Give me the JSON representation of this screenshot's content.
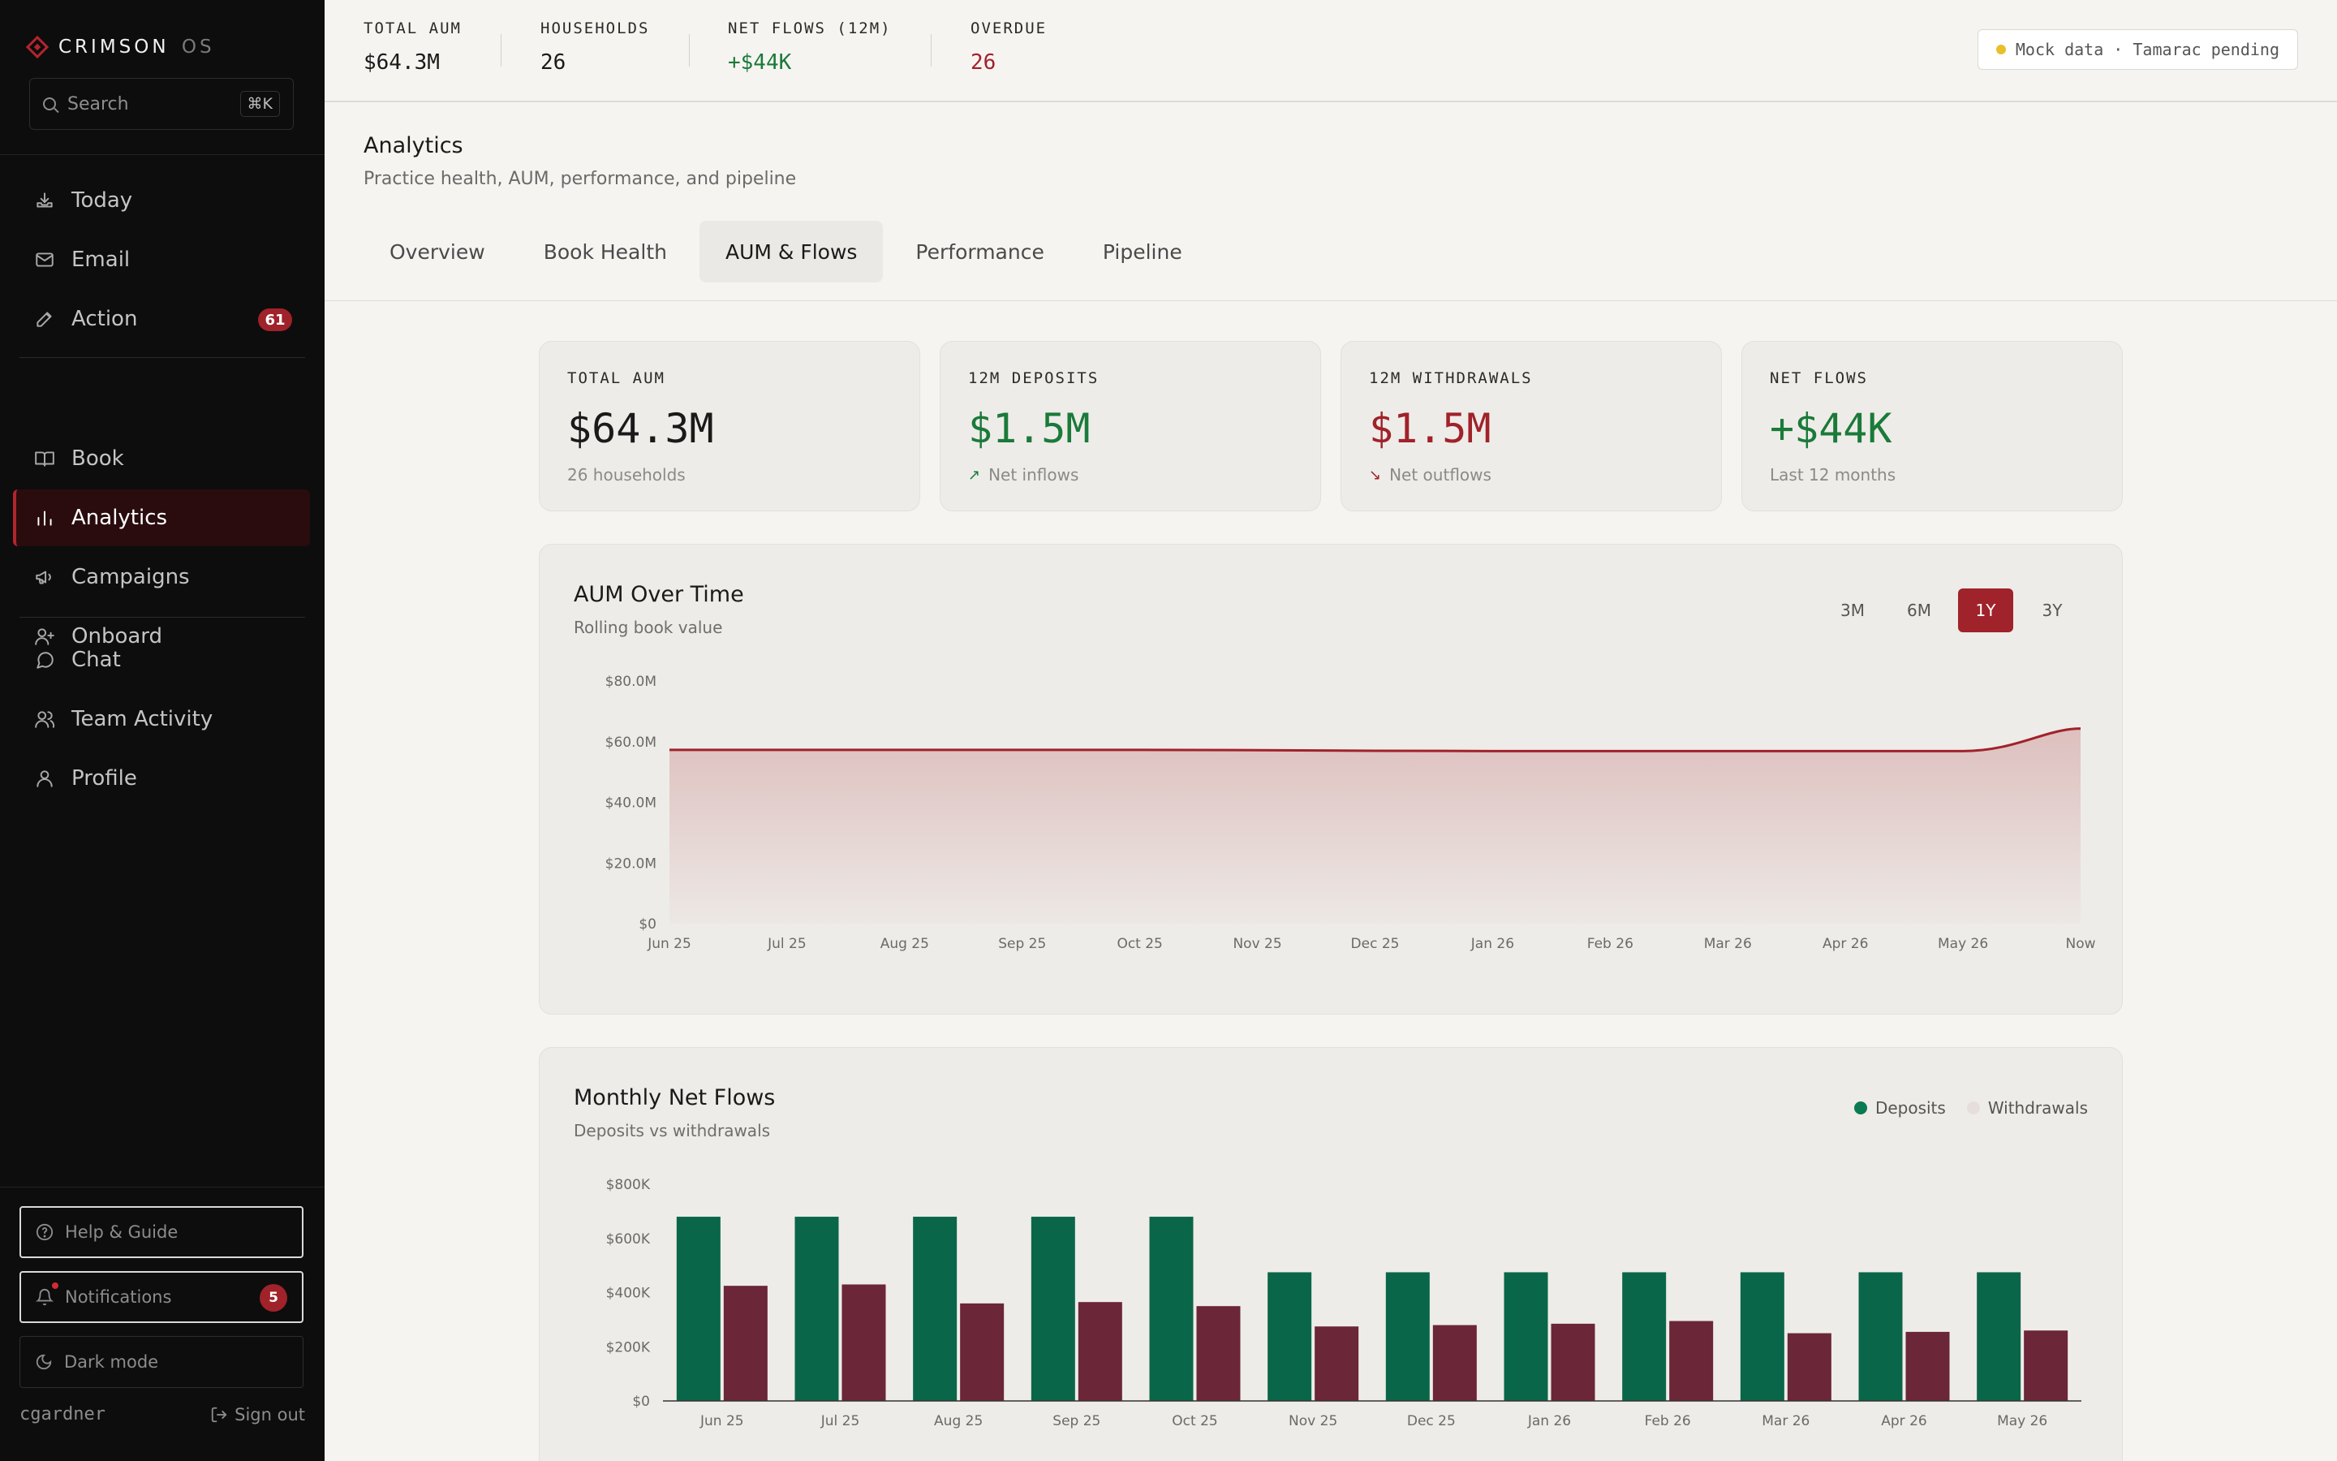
{
  "sidebar": {
    "brand": "CRIMSON",
    "brand_suffix": "OS",
    "search_placeholder": "Search",
    "search_shortcut": "⌘K",
    "nav_group1": [
      {
        "label": "Today",
        "icon": "inbox-tray-icon"
      },
      {
        "label": "Email",
        "icon": "mail-icon"
      },
      {
        "label": "Action",
        "icon": "pencil-icon",
        "badge": "61"
      }
    ],
    "nav_group2": [
      {
        "label": "Book",
        "icon": "book-icon"
      },
      {
        "label": "Analytics",
        "icon": "bar-chart-icon",
        "active": true
      },
      {
        "label": "Campaigns",
        "icon": "megaphone-icon"
      },
      {
        "label": "Onboard",
        "icon": "user-plus-icon"
      }
    ],
    "nav_group3": [
      {
        "label": "Chat",
        "icon": "chat-bubble-icon"
      },
      {
        "label": "Team Activity",
        "icon": "users-icon"
      },
      {
        "label": "Profile",
        "icon": "user-icon"
      }
    ],
    "help_label": "Help & Guide",
    "notifications_label": "Notifications",
    "notifications_badge": "5",
    "dark_mode_label": "Dark mode",
    "username": "cgardner",
    "signout_label": "Sign out"
  },
  "topbar": {
    "stats": [
      {
        "label": "TOTAL AUM",
        "value": "$64.3M",
        "color": "#1a1a1a"
      },
      {
        "label": "HOUSEHOLDS",
        "value": "26",
        "color": "#1a1a1a"
      },
      {
        "label": "NET FLOWS (12M)",
        "value": "+$44K",
        "color": "#1a7a3a"
      },
      {
        "label": "OVERDUE",
        "value": "26",
        "color": "#a0222a"
      }
    ],
    "pending_label": "Mock data · Tamarac pending"
  },
  "page": {
    "title": "Analytics",
    "subtitle": "Practice health, AUM, performance, and pipeline",
    "tabs": [
      "Overview",
      "Book Health",
      "AUM & Flows",
      "Performance",
      "Pipeline"
    ],
    "active_tab": "AUM & Flows"
  },
  "kpis": [
    {
      "label": "TOTAL AUM",
      "value": "$64.3M",
      "sub": "26 households",
      "tone": "neutral"
    },
    {
      "label": "12M DEPOSITS",
      "value": "$1.5M",
      "sub": "Net inflows",
      "tone": "green",
      "arrow": "up"
    },
    {
      "label": "12M WITHDRAWALS",
      "value": "$1.5M",
      "sub": "Net outflows",
      "tone": "red",
      "arrow": "down"
    },
    {
      "label": "NET FLOWS",
      "value": "+$44K",
      "sub": "Last 12 months",
      "tone": "green"
    }
  ],
  "aum_panel": {
    "title": "AUM Over Time",
    "subtitle": "Rolling book value",
    "ranges": [
      "3M",
      "6M",
      "1Y",
      "3Y"
    ],
    "active_range": "1Y"
  },
  "flows_panel": {
    "title": "Monthly Net Flows",
    "subtitle": "Deposits vs withdrawals",
    "legend": [
      {
        "label": "Deposits",
        "color": "#0a7a52"
      },
      {
        "label": "Withdrawals",
        "color": "#e6dedd"
      }
    ]
  },
  "chart_data": [
    {
      "type": "area",
      "title": "AUM Over Time",
      "subtitle": "Rolling book value",
      "x": [
        "Jun 25",
        "Jul 25",
        "Aug 25",
        "Sep 25",
        "Oct 25",
        "Nov 25",
        "Dec 25",
        "Jan 26",
        "Feb 26",
        "Mar 26",
        "Apr 26",
        "May 26",
        "Now"
      ],
      "series": [
        {
          "values": [
            57.3,
            57.3,
            57.3,
            57.3,
            57.3,
            57.2,
            57.0,
            56.9,
            56.9,
            56.9,
            56.9,
            56.9,
            64.3
          ],
          "color": "#a0222a"
        }
      ],
      "yticks": [
        "$0",
        "$20.0M",
        "$40.0M",
        "$60.0M",
        "$80.0M"
      ],
      "ylim": [
        0,
        80
      ],
      "grid": false
    },
    {
      "type": "bar",
      "title": "Monthly Net Flows",
      "subtitle": "Deposits vs withdrawals",
      "categories": [
        "Jun 25",
        "Jul 25",
        "Aug 25",
        "Sep 25",
        "Oct 25",
        "Nov 25",
        "Dec 25",
        "Jan 26",
        "Feb 26",
        "Mar 26",
        "Apr 26",
        "May 26"
      ],
      "series": [
        {
          "name": "Deposits",
          "values": [
            680,
            680,
            680,
            680,
            680,
            475,
            475,
            475,
            475,
            475,
            475,
            475
          ],
          "color": "#0a6649"
        },
        {
          "name": "Withdrawals",
          "values": [
            425,
            430,
            360,
            365,
            350,
            275,
            280,
            285,
            295,
            250,
            255,
            260
          ],
          "color": "#6b2637"
        }
      ],
      "yticks": [
        "$0",
        "$200K",
        "$400K",
        "$600K",
        "$800K"
      ],
      "ylim": [
        0,
        800
      ],
      "legend": "top-right"
    }
  ]
}
